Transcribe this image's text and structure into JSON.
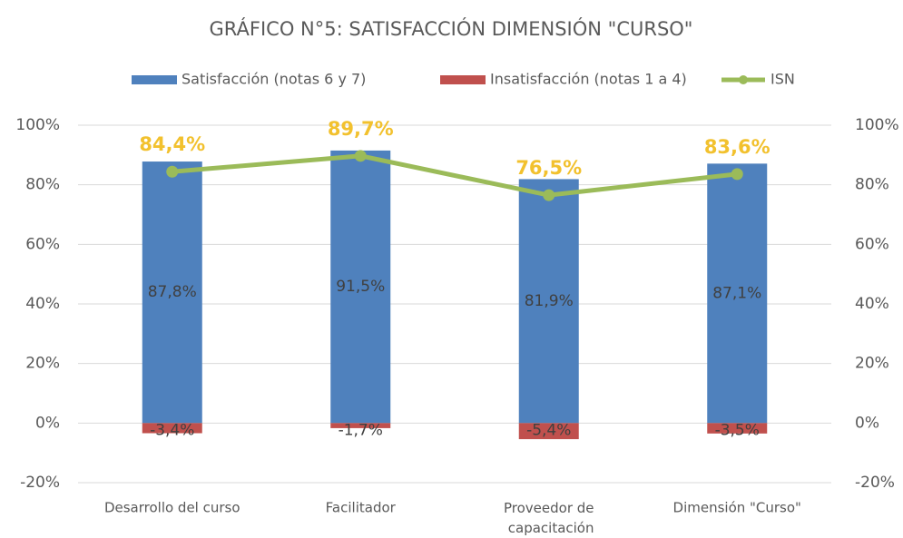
{
  "chart_data": {
    "type": "bar",
    "title": "GRÁFICO N°5: SATISFACCIÓN DIMENSIÓN \"CURSO\"",
    "categories": [
      "Desarrollo del curso",
      "Facilitador",
      "Proveedor de capacitación",
      "Dimensión \"Curso\""
    ],
    "series": [
      {
        "name": "Satisfacción (notas 6 y 7)",
        "color": "#4f81bd",
        "type": "bar",
        "values": [
          87.8,
          91.5,
          81.9,
          87.1
        ],
        "value_labels": [
          "87,8%",
          "91,5%",
          "81,9%",
          "87,1%"
        ]
      },
      {
        "name": "Insatisfacción (notas 1 a 4)",
        "color": "#c0504d",
        "type": "bar",
        "values": [
          -3.4,
          -1.7,
          -5.4,
          -3.5
        ],
        "value_labels": [
          "-3,4%",
          "-1,7%",
          "-5,4%",
          "-3,5%"
        ]
      },
      {
        "name": "ISN",
        "color": "#9bbb59",
        "type": "line",
        "axis": "y2",
        "label_color": "#f2c12e",
        "values": [
          84.4,
          89.7,
          76.5,
          83.6
        ],
        "value_labels": [
          "84,4%",
          "89,7%",
          "76,5%",
          "83,6%"
        ]
      }
    ],
    "ylim": [
      -20,
      100
    ],
    "yticks": [
      {
        "value": -20,
        "label": "-20%"
      },
      {
        "value": 0,
        "label": "0%"
      },
      {
        "value": 20,
        "label": "20%"
      },
      {
        "value": 40,
        "label": "40%"
      },
      {
        "value": 60,
        "label": "60%"
      },
      {
        "value": 80,
        "label": "80%"
      },
      {
        "value": 100,
        "label": "100%"
      }
    ],
    "y2lim": [
      -20,
      100
    ],
    "y2ticks": [
      {
        "value": -20,
        "label": "-20%"
      },
      {
        "value": 0,
        "label": "0%"
      },
      {
        "value": 20,
        "label": "20%"
      },
      {
        "value": 40,
        "label": "40%"
      },
      {
        "value": 60,
        "label": "60%"
      },
      {
        "value": 80,
        "label": "80%"
      },
      {
        "value": 100,
        "label": "100%"
      }
    ],
    "grid": true,
    "legend": "top"
  }
}
